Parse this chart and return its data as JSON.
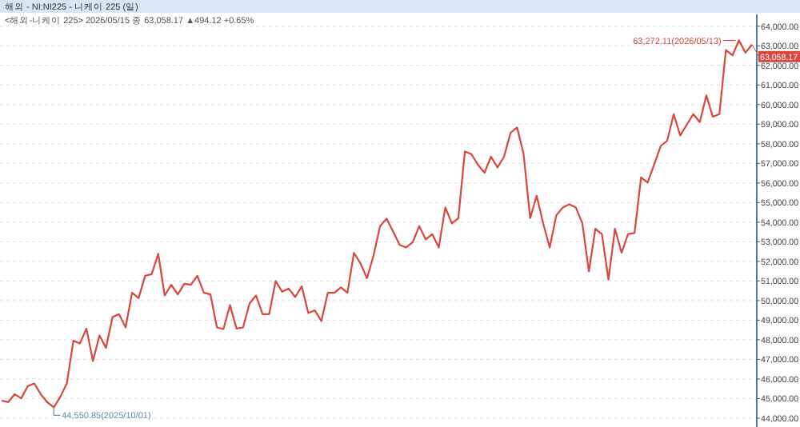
{
  "chart_data": {
    "type": "line",
    "title": "해외 - NI:NI225 - 니케이 225 (일)",
    "subtitle": "<해외-니케이 225> 2026/05/15 종 63,058.17 ▲494.12 +0.65%",
    "categories": [
      null,
      null,
      null,
      null,
      null,
      null,
      null,
      null,
      null,
      null,
      null,
      null,
      null,
      null,
      null,
      null,
      null,
      null,
      null,
      null,
      null,
      null,
      null,
      null,
      null,
      null,
      null,
      null,
      null,
      null,
      null,
      null,
      null,
      null,
      null,
      null,
      null,
      null,
      null,
      null,
      null,
      null,
      null,
      null,
      null,
      null,
      null,
      null,
      null,
      null,
      null,
      null,
      null,
      null,
      null,
      null,
      null,
      null,
      null,
      null,
      null,
      null,
      null,
      null,
      null,
      null,
      null,
      null,
      null,
      null,
      null,
      null,
      null,
      null,
      null,
      null,
      null,
      null,
      null,
      null,
      null,
      null,
      null,
      null,
      null,
      null,
      null,
      null,
      null,
      null,
      null,
      null,
      null,
      null,
      null,
      null,
      null,
      null,
      null,
      null,
      null,
      null,
      null,
      null,
      null,
      null,
      null,
      null,
      null,
      null,
      null,
      null,
      null,
      null,
      null,
      null
    ],
    "series": [
      {
        "color": "#d9463c",
        "values": [
          44898,
          44817,
          45225,
          45013,
          45633,
          45772,
          45225,
          44817,
          44550.85,
          45095,
          45772,
          47951,
          47813,
          48572,
          46915,
          48222,
          47592,
          49159,
          49307,
          48629,
          50401,
          50123,
          51265,
          51347,
          52384,
          50260,
          50808,
          50319,
          50858,
          50808,
          51265,
          50401,
          50319,
          48629,
          48547,
          49770,
          48572,
          48629,
          49854,
          50260,
          49307,
          49307,
          50996,
          50450,
          50613,
          50180,
          50727,
          49363,
          49502,
          48956,
          50401,
          50401,
          50670,
          50401,
          52433,
          51893,
          51135,
          52302,
          53796,
          54180,
          53527,
          52845,
          52711,
          52980,
          53796,
          53118,
          53388,
          52711,
          54752,
          53935,
          54204,
          57608,
          57470,
          56931,
          56523,
          57339,
          56792,
          57339,
          58563,
          58833,
          57470,
          54204,
          55351,
          53935,
          52711,
          54344,
          54752,
          54915,
          54752,
          53935,
          51486,
          53665,
          53388,
          51077,
          53665,
          52441,
          53388,
          53445,
          56286,
          56018,
          56931,
          57878,
          58155,
          59510,
          58425,
          58972,
          59510,
          59102,
          60465,
          59380,
          59510,
          62776,
          62510,
          63272.11,
          62645,
          63058.17
        ]
      }
    ],
    "ylim": [
      43550,
      64600
    ],
    "yticks": [
      {
        "value": 44000,
        "label": "44,000.00"
      },
      {
        "value": 45000,
        "label": "45,000.00"
      },
      {
        "value": 46000,
        "label": "46,000.00"
      },
      {
        "value": 47000,
        "label": "47,000.00"
      },
      {
        "value": 48000,
        "label": "48,000.00"
      },
      {
        "value": 49000,
        "label": "49,000.00"
      },
      {
        "value": 50000,
        "label": "50,000.00"
      },
      {
        "value": 51000,
        "label": "51,000.00"
      },
      {
        "value": 52000,
        "label": "52,000.00"
      },
      {
        "value": 53000,
        "label": "53,000.00"
      },
      {
        "value": 54000,
        "label": "54,000.00"
      },
      {
        "value": 55000,
        "label": "55,000.00"
      },
      {
        "value": 56000,
        "label": "56,000.00"
      },
      {
        "value": 57000,
        "label": "57,000.00"
      },
      {
        "value": 58000,
        "label": "58,000.00"
      },
      {
        "value": 59000,
        "label": "59,000.00"
      },
      {
        "value": 60000,
        "label": "60,000.00"
      },
      {
        "value": 61000,
        "label": "61,000.00"
      },
      {
        "value": 62000,
        "label": "62,000.00"
      },
      {
        "value": 63000,
        "label": "63,000.00"
      },
      {
        "value": 64000,
        "label": "64,000.00"
      }
    ],
    "annotations": [
      "63,272.11(2026/05/13)",
      "44,550.85(2025/10/01)",
      "63,058.17"
    ],
    "grid": "y",
    "tick_labels": "y",
    "marker": "none",
    "line_style": "solid"
  }
}
